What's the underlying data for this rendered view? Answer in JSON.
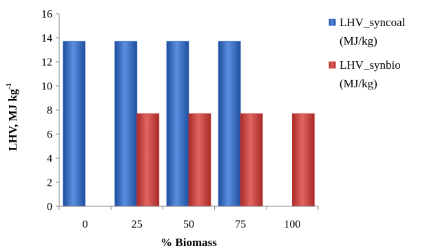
{
  "chart_data": {
    "type": "bar",
    "categories": [
      "0",
      "25",
      "50",
      "75",
      "100"
    ],
    "series": [
      {
        "name": "LHV_syncoal",
        "name_line2": "(MJ/kg)",
        "values": [
          13.7,
          13.7,
          13.7,
          13.7,
          null
        ],
        "color": "#2f63b8"
      },
      {
        "name": "LHV_synbio",
        "name_line2": "(MJ/kg)",
        "values": [
          null,
          7.7,
          7.7,
          7.7,
          7.7
        ],
        "color": "#c93a37"
      }
    ],
    "xlabel": "% Biomass",
    "ylabel": "LHV, MJ kg",
    "ylabel_superscript": "-1",
    "ylim": [
      0,
      16
    ],
    "yticks": [
      0,
      2,
      4,
      6,
      8,
      10,
      12,
      14,
      16
    ],
    "grid": false,
    "legend_position": "right"
  }
}
